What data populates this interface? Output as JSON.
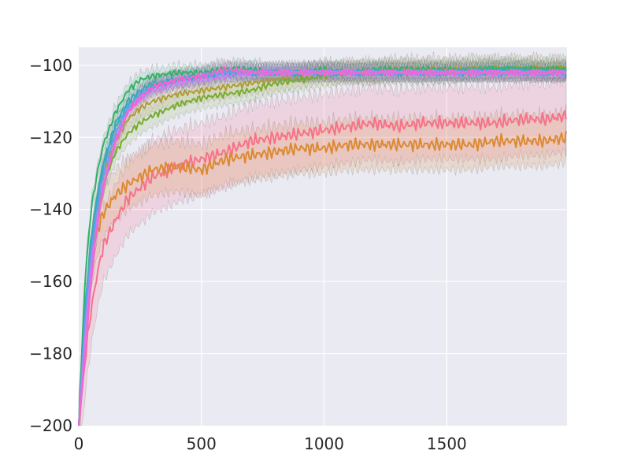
{
  "chart_data": {
    "type": "line",
    "title": "",
    "xlabel": "",
    "ylabel": "",
    "xlim": [
      0,
      1990
    ],
    "ylim": [
      -200,
      -95
    ],
    "xticks": [
      0,
      500,
      1000,
      1500
    ],
    "yticks": [
      -200,
      -180,
      -160,
      -140,
      -120,
      -100
    ],
    "xtick_labels": [
      "0",
      "500",
      "1000",
      "1500"
    ],
    "ytick_labels": [
      "−200",
      "−180",
      "−160",
      "−140",
      "−120",
      "−100"
    ],
    "grid": true,
    "legend": "none",
    "series": [
      {
        "color": "#f77189",
        "band": 10,
        "x": [
          0,
          25,
          50,
          75,
          100,
          150,
          200,
          250,
          300,
          400,
          500,
          600,
          700,
          800,
          900,
          1000,
          1100,
          1200,
          1300,
          1400,
          1500,
          1600,
          1700,
          1800,
          1900,
          1990
        ],
        "y": [
          -200,
          -182,
          -168,
          -158,
          -150,
          -143,
          -137,
          -134,
          -131,
          -128,
          -126,
          -124,
          -121,
          -120,
          -119,
          -118,
          -117,
          -116,
          -117,
          -116,
          -116,
          -116,
          -116,
          -115,
          -115,
          -114
        ]
      },
      {
        "color": "#dc8932",
        "band": 7,
        "x": [
          0,
          25,
          50,
          75,
          100,
          150,
          200,
          250,
          300,
          400,
          500,
          600,
          700,
          800,
          900,
          1000,
          1100,
          1200,
          1300,
          1400,
          1500,
          1600,
          1700,
          1800,
          1900,
          1990
        ],
        "y": [
          -200,
          -170,
          -155,
          -146,
          -141,
          -136,
          -133,
          -131,
          -129,
          -128,
          -129,
          -126,
          -125,
          -124,
          -123,
          -123,
          -122,
          -122,
          -122,
          -122,
          -122,
          -122,
          -121,
          -121,
          -121,
          -120
        ]
      },
      {
        "color": "#ae9d31",
        "band": 3,
        "x": [
          0,
          25,
          50,
          75,
          100,
          150,
          200,
          250,
          300,
          400,
          500,
          600,
          700,
          800,
          900,
          1000,
          1100,
          1200,
          1300,
          1400,
          1500,
          1600,
          1700,
          1800,
          1900,
          1990
        ],
        "y": [
          -200,
          -172,
          -150,
          -138,
          -130,
          -121,
          -115,
          -112,
          -110,
          -108,
          -107,
          -106,
          -105,
          -104,
          -103,
          -102,
          -102,
          -102,
          -101,
          -101,
          -101,
          -101,
          -101,
          -101,
          -101,
          -101
        ]
      },
      {
        "color": "#77ab31",
        "band": 3,
        "x": [
          0,
          25,
          50,
          75,
          100,
          150,
          200,
          250,
          300,
          400,
          500,
          600,
          700,
          800,
          900,
          1000,
          1100,
          1200,
          1300,
          1400,
          1500,
          1600,
          1700,
          1800,
          1900,
          1990
        ],
        "y": [
          -200,
          -174,
          -154,
          -142,
          -133,
          -124,
          -119,
          -116,
          -114,
          -111,
          -109,
          -108,
          -107,
          -105,
          -104,
          -103,
          -102,
          -102,
          -102,
          -102,
          -102,
          -101,
          -101,
          -101,
          -101,
          -101
        ]
      },
      {
        "color": "#33b166",
        "band": 2,
        "x": [
          0,
          25,
          50,
          75,
          100,
          150,
          200,
          250,
          300,
          400,
          500,
          600,
          700,
          800,
          900,
          1000,
          1100,
          1200,
          1300,
          1400,
          1500,
          1600,
          1700,
          1800,
          1900,
          1990
        ],
        "y": [
          -200,
          -160,
          -140,
          -130,
          -122,
          -113,
          -107,
          -104,
          -103,
          -102,
          -102,
          -101,
          -101,
          -102,
          -102,
          -101,
          -102,
          -101,
          -101,
          -101,
          -101,
          -102,
          -101,
          -101,
          -101,
          -101
        ]
      },
      {
        "color": "#36ada4",
        "band": 2,
        "x": [
          0,
          25,
          50,
          75,
          100,
          150,
          200,
          250,
          300,
          400,
          500,
          600,
          700,
          800,
          900,
          1000,
          1100,
          1200,
          1300,
          1400,
          1500,
          1600,
          1700,
          1800,
          1900,
          1990
        ],
        "y": [
          -200,
          -168,
          -148,
          -136,
          -127,
          -116,
          -110,
          -107,
          -105,
          -104,
          -103,
          -102,
          -102,
          -102,
          -102,
          -102,
          -102,
          -102,
          -102,
          -102,
          -102,
          -101,
          -101,
          -101,
          -102,
          -102
        ]
      },
      {
        "color": "#38a9c5",
        "band": 2,
        "x": [
          0,
          25,
          50,
          75,
          100,
          150,
          200,
          250,
          300,
          400,
          500,
          600,
          700,
          800,
          900,
          1000,
          1100,
          1200,
          1300,
          1400,
          1500,
          1600,
          1700,
          1800,
          1900,
          1990
        ],
        "y": [
          -200,
          -170,
          -150,
          -138,
          -128,
          -117,
          -111,
          -108,
          -106,
          -104,
          -103,
          -102,
          -102,
          -102,
          -102,
          -102,
          -102,
          -102,
          -102,
          -102,
          -102,
          -102,
          -102,
          -102,
          -102,
          -102
        ]
      },
      {
        "color": "#6e9bf4",
        "band": 2,
        "x": [
          0,
          25,
          50,
          75,
          100,
          150,
          200,
          250,
          300,
          400,
          500,
          600,
          700,
          800,
          900,
          1000,
          1100,
          1200,
          1300,
          1400,
          1500,
          1600,
          1700,
          1800,
          1900,
          1990
        ],
        "y": [
          -200,
          -172,
          -152,
          -140,
          -130,
          -119,
          -112,
          -108,
          -106,
          -104,
          -103,
          -102,
          -102,
          -102,
          -102,
          -102,
          -102,
          -102,
          -102,
          -102,
          -102,
          -102,
          -102,
          -102,
          -102,
          -102
        ]
      },
      {
        "color": "#cc7af4",
        "band": 2,
        "x": [
          0,
          25,
          50,
          75,
          100,
          150,
          200,
          250,
          300,
          400,
          500,
          600,
          700,
          800,
          900,
          1000,
          1100,
          1200,
          1300,
          1400,
          1500,
          1600,
          1700,
          1800,
          1900,
          1990
        ],
        "y": [
          -200,
          -176,
          -156,
          -143,
          -133,
          -121,
          -113,
          -109,
          -107,
          -105,
          -104,
          -103,
          -102,
          -102,
          -102,
          -102,
          -102,
          -102,
          -102,
          -102,
          -102,
          -102,
          -102,
          -102,
          -102,
          -102
        ]
      },
      {
        "color": "#f565cc",
        "band": 2,
        "x": [
          0,
          25,
          50,
          75,
          100,
          150,
          200,
          250,
          300,
          400,
          500,
          600,
          700,
          800,
          900,
          1000,
          1100,
          1200,
          1300,
          1400,
          1500,
          1600,
          1700,
          1800,
          1900,
          1990
        ],
        "y": [
          -200,
          -182,
          -160,
          -145,
          -134,
          -121,
          -113,
          -109,
          -106,
          -104,
          -103,
          -101,
          -102,
          -102,
          -102,
          -102,
          -102,
          -102,
          -102,
          -102,
          -102,
          -102,
          -102,
          -102,
          -102,
          -102
        ]
      }
    ]
  }
}
